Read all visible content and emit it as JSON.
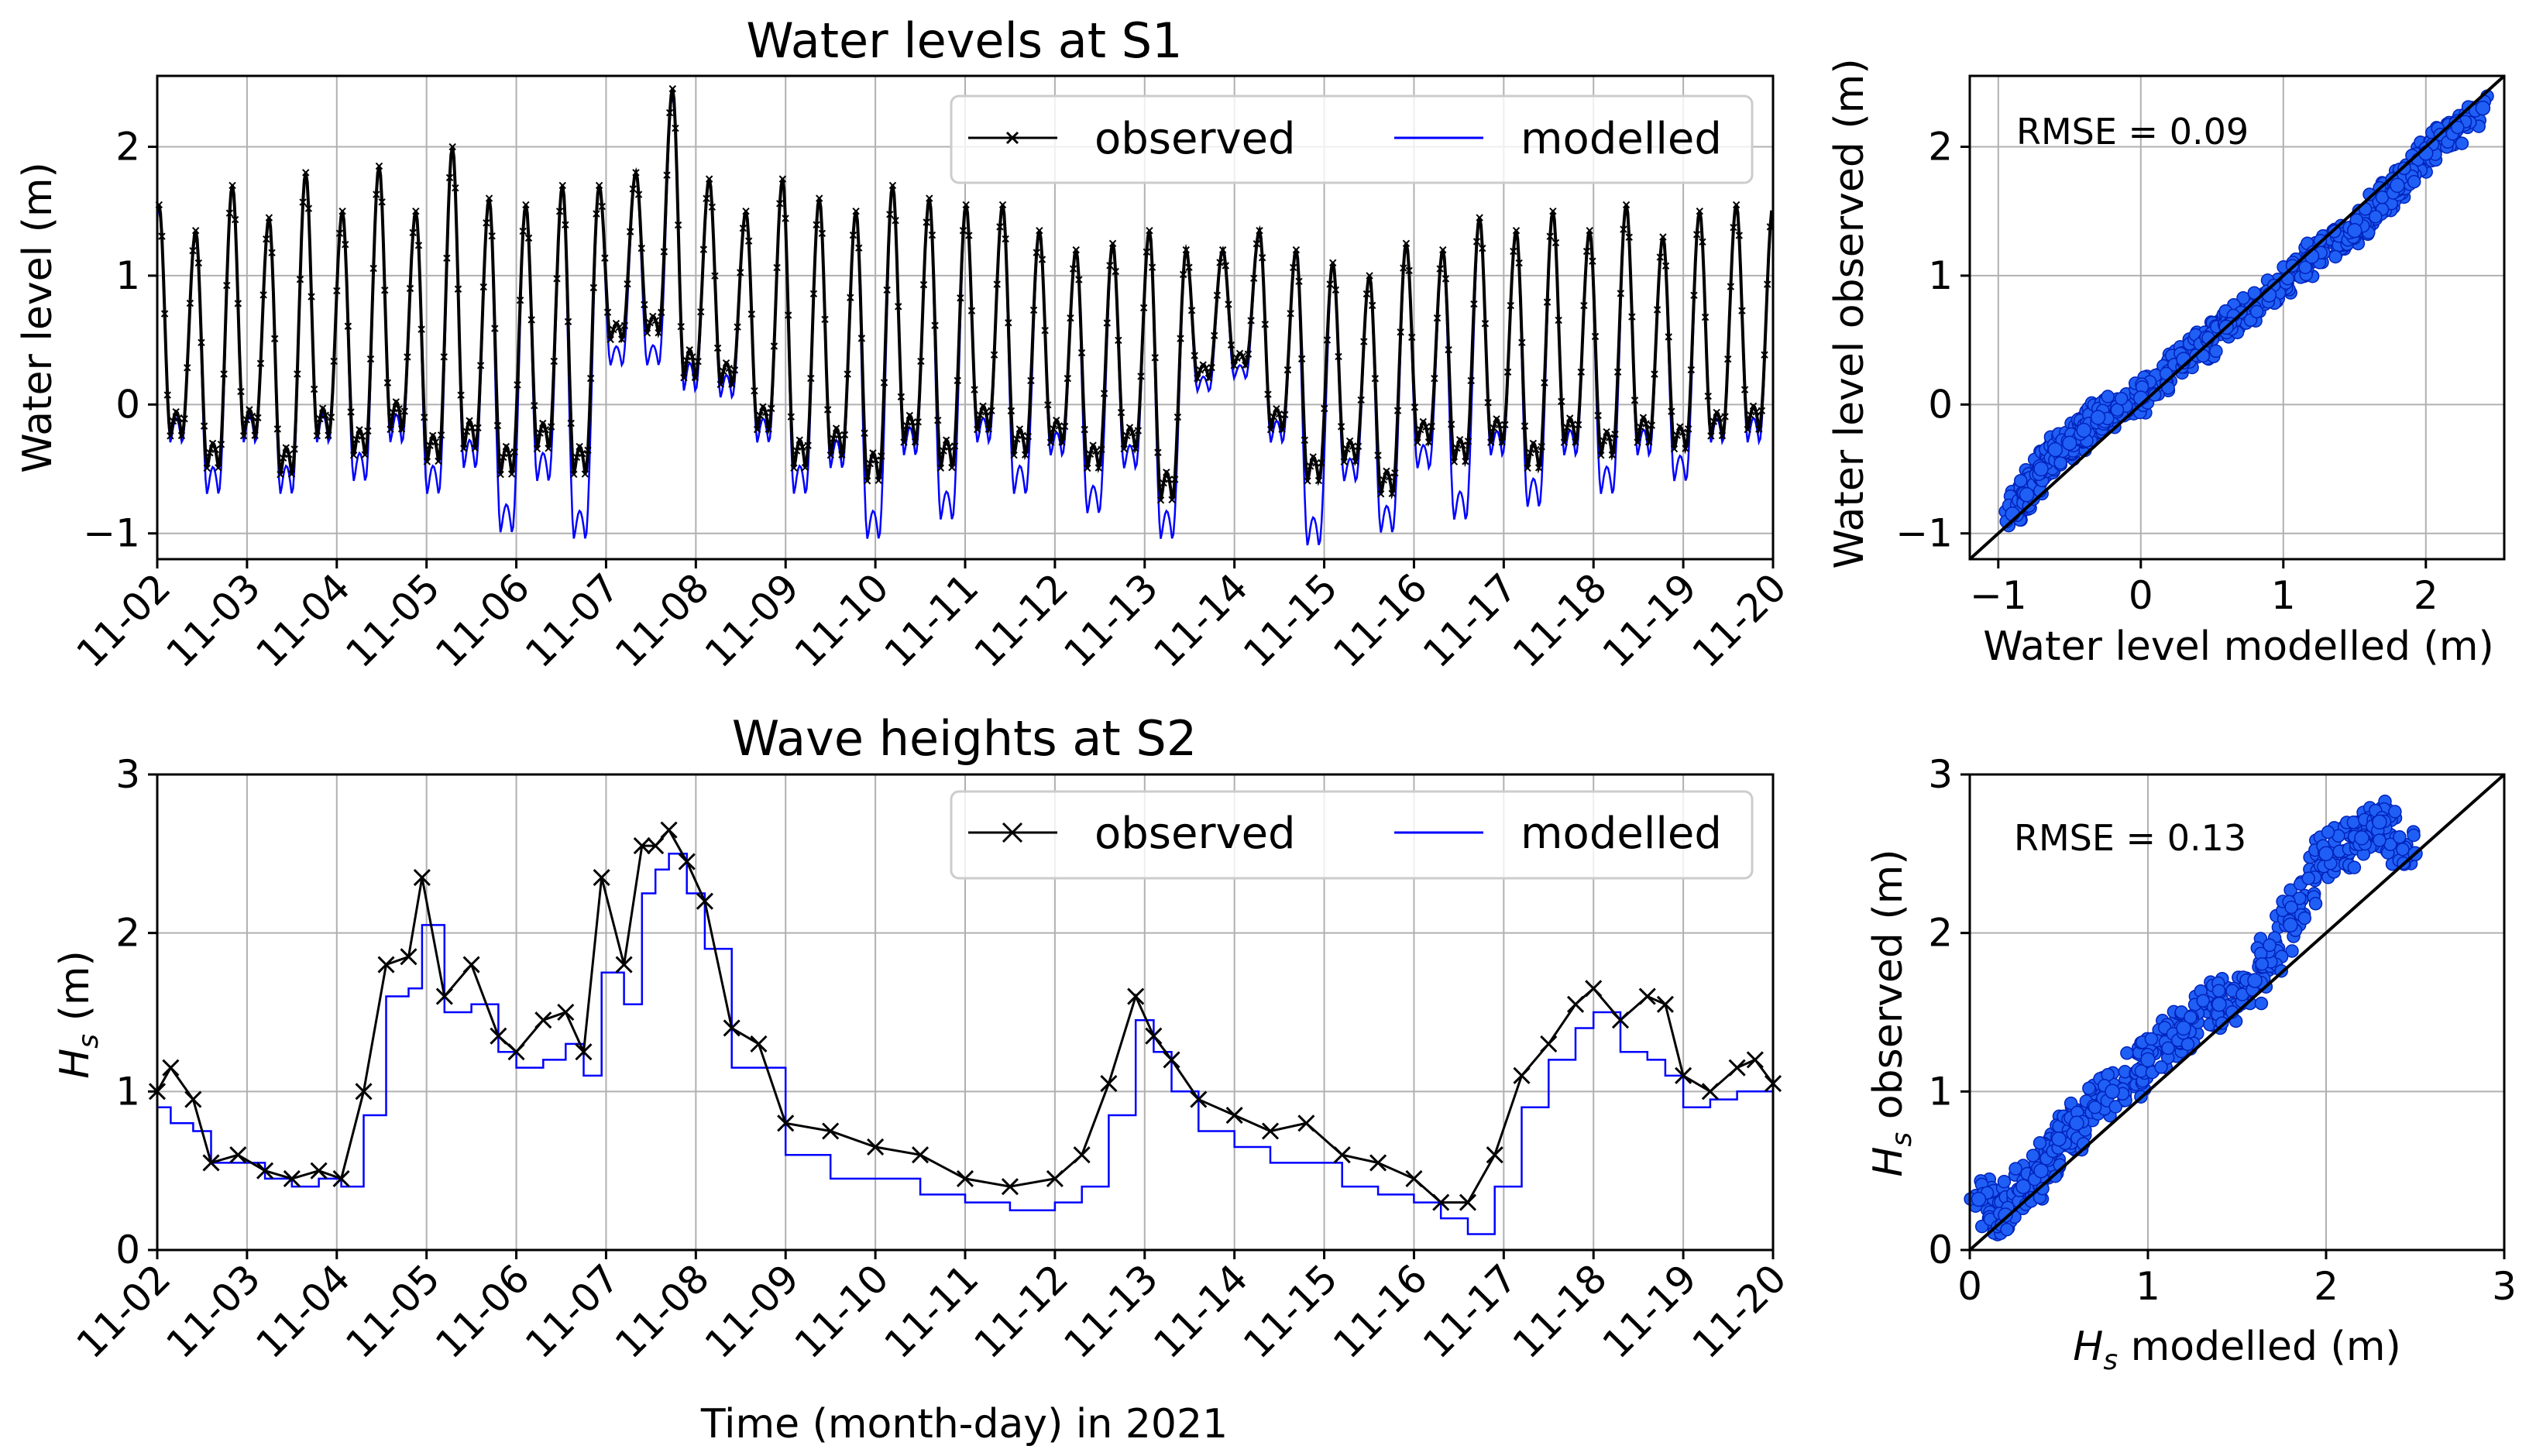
{
  "figure": {
    "xlabel_bottom": "Time (month-day) in 2021"
  },
  "chart_data": [
    {
      "id": "wl_ts",
      "type": "line",
      "title": "Water levels at S1",
      "xlabel": "",
      "ylabel": "Water level (m)",
      "categories": [
        "11-02",
        "11-03",
        "11-04",
        "11-05",
        "11-06",
        "11-07",
        "11-08",
        "11-09",
        "11-10",
        "11-11",
        "11-12",
        "11-13",
        "11-14",
        "11-15",
        "11-16",
        "11-17",
        "11-18",
        "11-19",
        "11-20"
      ],
      "xlim": [
        2,
        20
      ],
      "ylim": [
        -1.2,
        2.55
      ],
      "yticks": [
        -1,
        0,
        1,
        2
      ],
      "ytick_labels": [
        "−1",
        "0",
        "1",
        "2"
      ],
      "grid": true,
      "legend": {
        "position": "top-right",
        "entries": [
          "observed",
          "modelled"
        ]
      },
      "series": [
        {
          "name": "observed",
          "color": "#000000",
          "marker": "x",
          "peaks": [
            1.55,
            1.35,
            1.7,
            1.45,
            1.8,
            1.5,
            1.85,
            1.5,
            2.0,
            1.6,
            1.55,
            1.7,
            1.7,
            1.8,
            2.45,
            1.75,
            1.5,
            1.75,
            1.6,
            1.5,
            1.7,
            1.6,
            1.55,
            1.55,
            1.35,
            1.2,
            1.25,
            1.35,
            1.2,
            1.2,
            1.35,
            1.2,
            1.1,
            1.0,
            1.25,
            1.2,
            1.45,
            1.35,
            1.5,
            1.35,
            1.55,
            1.3,
            1.5,
            1.55
          ],
          "troughs": [
            -0.25,
            -0.5,
            -0.25,
            -0.55,
            -0.25,
            -0.4,
            -0.2,
            -0.45,
            -0.35,
            -0.55,
            -0.35,
            -0.55,
            0.5,
            0.55,
            0.2,
            0.15,
            -0.2,
            -0.5,
            -0.4,
            -0.6,
            -0.3,
            -0.5,
            -0.2,
            -0.4,
            -0.3,
            -0.5,
            -0.35,
            -0.75,
            0.2,
            0.3,
            -0.2,
            -0.6,
            -0.45,
            -0.7,
            -0.3,
            -0.45,
            -0.3,
            -0.5,
            -0.3,
            -0.4,
            -0.3,
            -0.35,
            -0.25,
            -0.2
          ]
        },
        {
          "name": "modelled",
          "color": "#0000ff",
          "marker": "",
          "peaks": [
            1.5,
            1.3,
            1.68,
            1.42,
            1.8,
            1.48,
            1.85,
            1.48,
            2.0,
            1.58,
            1.55,
            1.68,
            1.7,
            1.78,
            2.4,
            1.72,
            1.48,
            1.72,
            1.58,
            1.48,
            1.68,
            1.58,
            1.52,
            1.52,
            1.32,
            1.18,
            1.22,
            1.32,
            1.18,
            1.18,
            1.32,
            1.18,
            1.08,
            0.98,
            1.22,
            1.18,
            1.42,
            1.32,
            1.48,
            1.32,
            1.52,
            1.28,
            1.48,
            1.52
          ],
          "troughs": [
            -0.3,
            -0.7,
            -0.3,
            -0.7,
            -0.3,
            -0.6,
            -0.3,
            -0.7,
            -0.5,
            -1.0,
            -0.6,
            -1.05,
            0.3,
            0.3,
            0.1,
            0.05,
            -0.3,
            -0.7,
            -0.5,
            -1.05,
            -0.4,
            -0.9,
            -0.3,
            -0.7,
            -0.4,
            -0.85,
            -0.5,
            -1.05,
            0.1,
            0.2,
            -0.3,
            -1.1,
            -0.6,
            -1.0,
            -0.5,
            -0.9,
            -0.4,
            -0.8,
            -0.4,
            -0.7,
            -0.4,
            -0.6,
            -0.3,
            -0.3
          ]
        }
      ]
    },
    {
      "id": "wl_sc",
      "type": "scatter",
      "title": "",
      "xlabel": "Water level modelled (m)",
      "ylabel": "Water level observed (m)",
      "xlim": [
        -1.2,
        2.55
      ],
      "ylim": [
        -1.2,
        2.55
      ],
      "xticks": [
        -1,
        0,
        1,
        2
      ],
      "xtick_labels": [
        "−1",
        "0",
        "1",
        "2"
      ],
      "yticks": [
        -1,
        0,
        1,
        2
      ],
      "ytick_labels": [
        "−1",
        "0",
        "1",
        "2"
      ],
      "grid": true,
      "annotation": "RMSE = 0.09",
      "fill_color": "#1f5ff5",
      "edge_color": "#0022bb",
      "identity_line": [
        [
          -1.2,
          -1.2
        ],
        [
          2.55,
          2.55
        ]
      ],
      "points": [
        [
          -0.9,
          -0.85
        ],
        [
          -0.8,
          -0.7
        ],
        [
          -0.7,
          -0.5
        ],
        [
          -0.6,
          -0.35
        ],
        [
          -0.5,
          -0.3
        ],
        [
          -0.4,
          -0.2
        ],
        [
          -0.3,
          -0.1
        ],
        [
          0.0,
          0.05
        ],
        [
          0.3,
          0.35
        ],
        [
          0.6,
          0.6
        ],
        [
          0.9,
          0.85
        ],
        [
          1.2,
          1.15
        ],
        [
          1.5,
          1.35
        ],
        [
          1.8,
          1.7
        ],
        [
          2.0,
          1.95
        ],
        [
          2.4,
          2.3
        ]
      ]
    },
    {
      "id": "hs_ts",
      "type": "line",
      "title": "Wave heights at S2",
      "xlabel": "Time (month-day) in 2021",
      "ylabel": "H_s (m)",
      "ylabel_main": "H",
      "ylabel_sub": "s",
      "ylabel_rest": " (m)",
      "categories": [
        "11-02",
        "11-03",
        "11-04",
        "11-05",
        "11-06",
        "11-07",
        "11-08",
        "11-09",
        "11-10",
        "11-11",
        "11-12",
        "11-13",
        "11-14",
        "11-15",
        "11-16",
        "11-17",
        "11-18",
        "11-19",
        "11-20"
      ],
      "xlim": [
        2,
        20
      ],
      "ylim": [
        0,
        3
      ],
      "yticks": [
        0,
        1,
        2,
        3
      ],
      "ytick_labels": [
        "0",
        "1",
        "2",
        "3"
      ],
      "grid": true,
      "legend": {
        "position": "top-right",
        "entries": [
          "observed",
          "modelled"
        ]
      },
      "series": [
        {
          "name": "observed",
          "color": "#000000",
          "marker": "x",
          "x": [
            2.0,
            2.15,
            2.4,
            2.6,
            2.9,
            3.2,
            3.5,
            3.8,
            4.05,
            4.3,
            4.55,
            4.8,
            4.95,
            5.2,
            5.5,
            5.8,
            6.0,
            6.3,
            6.55,
            6.75,
            6.95,
            7.2,
            7.4,
            7.55,
            7.7,
            7.9,
            8.1,
            8.4,
            8.7,
            9.0,
            9.5,
            10.0,
            10.5,
            11.0,
            11.5,
            12.0,
            12.3,
            12.6,
            12.9,
            13.1,
            13.3,
            13.6,
            14.0,
            14.4,
            14.8,
            15.2,
            15.6,
            16.0,
            16.3,
            16.6,
            16.9,
            17.2,
            17.5,
            17.8,
            18.0,
            18.3,
            18.6,
            18.8,
            19.0,
            19.3,
            19.6,
            19.8,
            20.0
          ],
          "y": [
            1.0,
            1.15,
            0.95,
            0.55,
            0.6,
            0.5,
            0.45,
            0.5,
            0.45,
            1.0,
            1.8,
            1.85,
            2.35,
            1.6,
            1.8,
            1.35,
            1.25,
            1.45,
            1.5,
            1.25,
            2.35,
            1.8,
            2.55,
            2.55,
            2.65,
            2.45,
            2.2,
            1.4,
            1.3,
            0.8,
            0.75,
            0.65,
            0.6,
            0.45,
            0.4,
            0.45,
            0.6,
            1.05,
            1.6,
            1.35,
            1.2,
            0.95,
            0.85,
            0.75,
            0.8,
            0.6,
            0.55,
            0.45,
            0.3,
            0.3,
            0.6,
            1.1,
            1.3,
            1.55,
            1.65,
            1.45,
            1.6,
            1.55,
            1.1,
            1.0,
            1.15,
            1.2,
            1.05
          ]
        },
        {
          "name": "modelled",
          "color": "#0000ff",
          "marker": "",
          "x": [
            2.0,
            2.15,
            2.4,
            2.6,
            2.9,
            3.2,
            3.5,
            3.8,
            4.05,
            4.3,
            4.55,
            4.8,
            4.95,
            5.2,
            5.5,
            5.8,
            6.0,
            6.3,
            6.55,
            6.75,
            6.95,
            7.2,
            7.4,
            7.55,
            7.7,
            7.9,
            8.1,
            8.4,
            8.7,
            9.0,
            9.5,
            10.0,
            10.5,
            11.0,
            11.5,
            12.0,
            12.3,
            12.6,
            12.9,
            13.1,
            13.3,
            13.6,
            14.0,
            14.4,
            14.8,
            15.2,
            15.6,
            16.0,
            16.3,
            16.6,
            16.9,
            17.2,
            17.5,
            17.8,
            18.0,
            18.3,
            18.6,
            18.8,
            19.0,
            19.3,
            19.6,
            19.8,
            20.0
          ],
          "y": [
            0.9,
            0.8,
            0.75,
            0.55,
            0.55,
            0.45,
            0.4,
            0.45,
            0.4,
            0.85,
            1.6,
            1.65,
            2.05,
            1.5,
            1.55,
            1.25,
            1.15,
            1.2,
            1.3,
            1.1,
            1.75,
            1.55,
            2.25,
            2.4,
            2.5,
            2.25,
            1.9,
            1.15,
            1.15,
            0.6,
            0.45,
            0.45,
            0.35,
            0.3,
            0.25,
            0.3,
            0.4,
            0.85,
            1.45,
            1.25,
            1.0,
            0.75,
            0.65,
            0.55,
            0.55,
            0.4,
            0.35,
            0.3,
            0.2,
            0.1,
            0.4,
            0.9,
            1.2,
            1.4,
            1.5,
            1.25,
            1.2,
            1.1,
            0.9,
            0.95,
            1.0,
            1.0,
            0.85
          ]
        }
      ]
    },
    {
      "id": "hs_sc",
      "type": "scatter",
      "title": "",
      "xlabel": "H_s modelled (m)",
      "xlabel_main": "H",
      "xlabel_sub": "s",
      "xlabel_rest": " modelled (m)",
      "ylabel": "H_s observed (m)",
      "ylabel_main": "H",
      "ylabel_sub": "s",
      "ylabel_rest": " observed (m)",
      "xlim": [
        0,
        3
      ],
      "ylim": [
        0,
        3
      ],
      "xticks": [
        0,
        1,
        2,
        3
      ],
      "xtick_labels": [
        "0",
        "1",
        "2",
        "3"
      ],
      "yticks": [
        0,
        1,
        2,
        3
      ],
      "ytick_labels": [
        "0",
        "1",
        "2",
        "3"
      ],
      "grid": true,
      "annotation": "RMSE = 0.13",
      "fill_color": "#1f5ff5",
      "edge_color": "#0022bb",
      "identity_line": [
        [
          0,
          0
        ],
        [
          3,
          3
        ]
      ],
      "points": [
        [
          0.05,
          0.32
        ],
        [
          0.2,
          0.22
        ],
        [
          0.3,
          0.4
        ],
        [
          0.4,
          0.5
        ],
        [
          0.5,
          0.7
        ],
        [
          0.6,
          0.8
        ],
        [
          0.8,
          1.0
        ],
        [
          1.0,
          1.2
        ],
        [
          1.2,
          1.4
        ],
        [
          1.4,
          1.55
        ],
        [
          1.6,
          1.7
        ],
        [
          1.8,
          2.05
        ],
        [
          2.0,
          2.5
        ],
        [
          2.2,
          2.6
        ],
        [
          2.3,
          2.7
        ],
        [
          2.5,
          2.5
        ]
      ]
    }
  ]
}
